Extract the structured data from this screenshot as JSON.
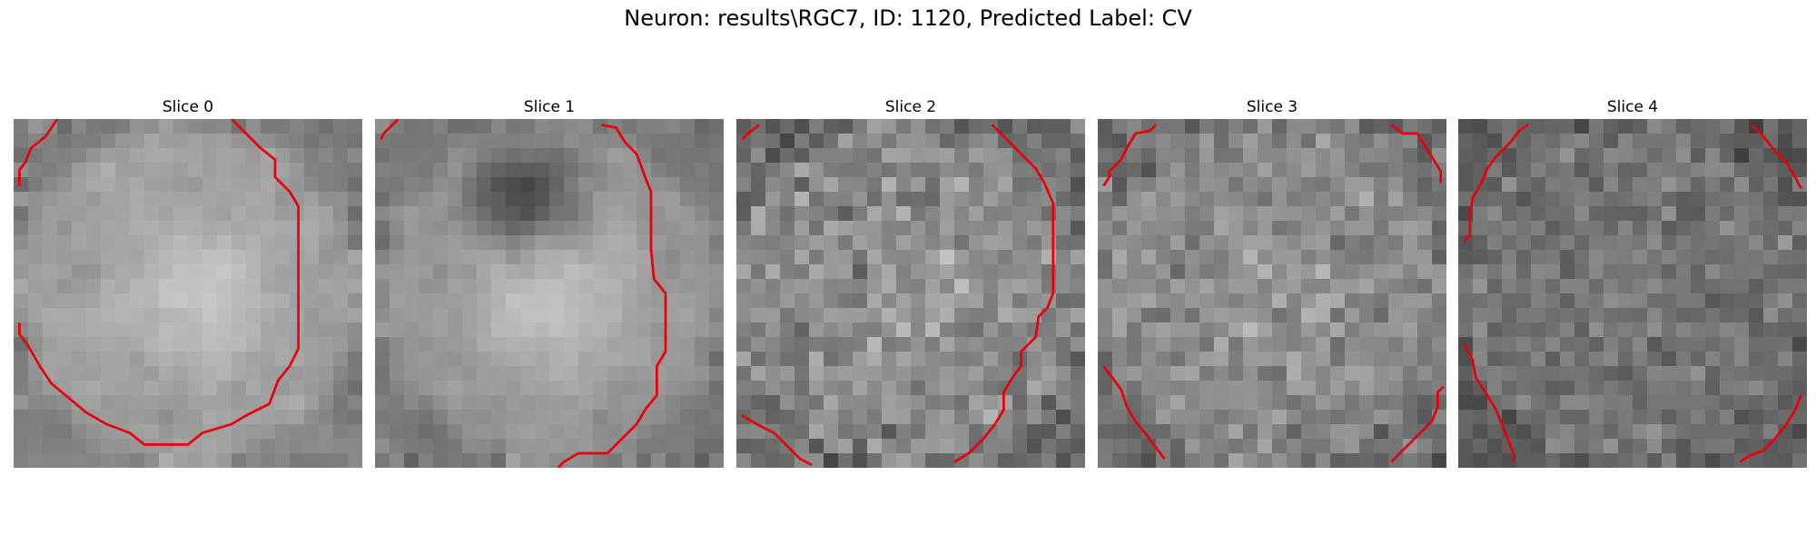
{
  "figure": {
    "title": "Neuron: results\\RGC7, ID: 1120, Predicted Label: CV"
  },
  "panels": [
    {
      "title": "Slice 0"
    },
    {
      "title": "Slice 1"
    },
    {
      "title": "Slice 2"
    },
    {
      "title": "Slice 3"
    },
    {
      "title": "Slice 4"
    }
  ],
  "colors": {
    "contour": "#e8000b",
    "background": "#ffffff"
  },
  "image": {
    "colormap": "gray",
    "grid": "24x24 pixel slices"
  }
}
